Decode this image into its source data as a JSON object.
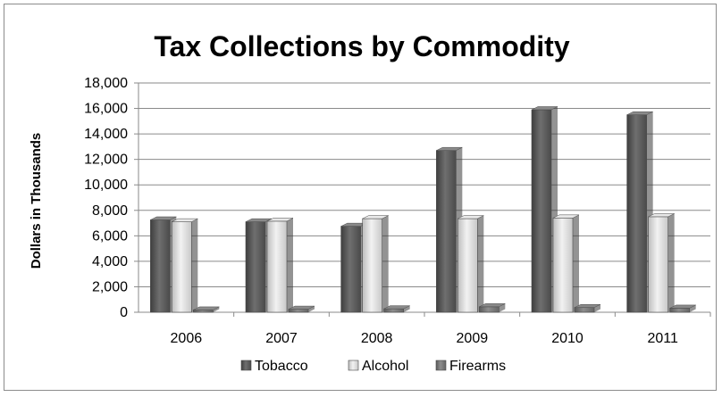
{
  "chart_data": {
    "type": "bar",
    "title": "Tax Collections by Commodity",
    "xlabel": "",
    "ylabel": "Dollars in Thousands",
    "categories": [
      "2006",
      "2007",
      "2008",
      "2009",
      "2010",
      "2011"
    ],
    "series": [
      {
        "name": "Tobacco",
        "values": [
          7250,
          7100,
          6750,
          12700,
          15900,
          15500
        ],
        "color": "#5f5f5f"
      },
      {
        "name": "Alcohol",
        "values": [
          7100,
          7150,
          7350,
          7350,
          7400,
          7500
        ],
        "color": "#d2d2d2"
      },
      {
        "name": "Firearms",
        "values": [
          180,
          240,
          270,
          430,
          370,
          320
        ],
        "color": "#7a7a7a"
      }
    ],
    "ylim": [
      0,
      18000
    ],
    "yticks": [
      0,
      2000,
      4000,
      6000,
      8000,
      10000,
      12000,
      14000,
      16000,
      18000
    ],
    "ytick_labels": [
      "0",
      "2,000",
      "4,000",
      "6,000",
      "8,000",
      "10,000",
      "12,000",
      "14,000",
      "16,000",
      "18,000"
    ],
    "grid": true,
    "legend": "bottom",
    "style": "3d-bars"
  }
}
